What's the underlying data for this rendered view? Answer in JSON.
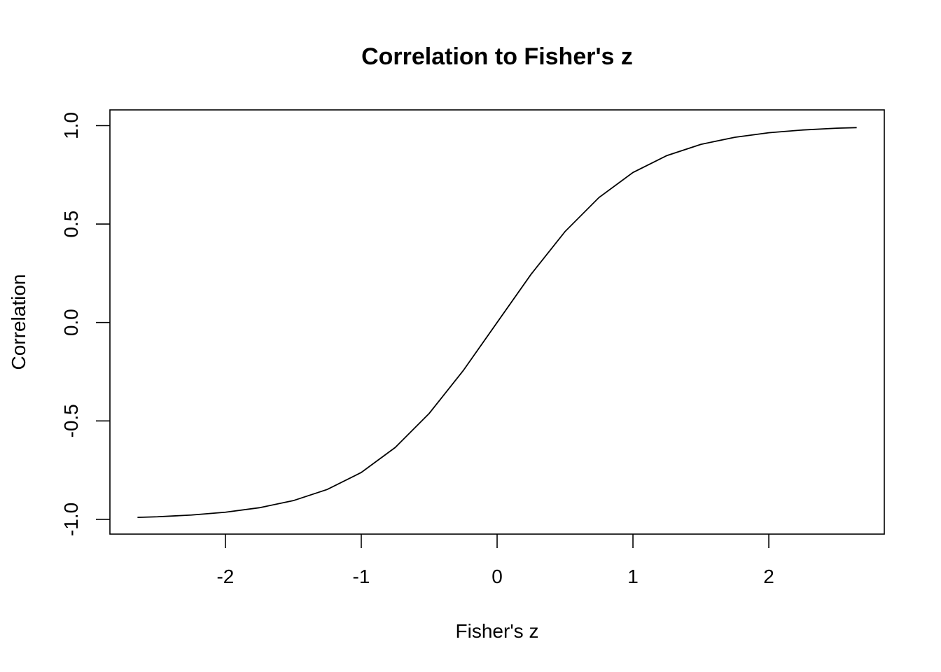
{
  "chart_data": {
    "type": "line",
    "title": "Correlation to Fisher's z",
    "xlabel": "Fisher's z",
    "ylabel": "Correlation",
    "xlim": [
      -2.85,
      2.85
    ],
    "ylim": [
      -1.075,
      1.08
    ],
    "x_ticks": [
      -2,
      -1,
      0,
      1,
      2
    ],
    "x_tick_labels": [
      "-2",
      "-1",
      "0",
      "1",
      "2"
    ],
    "y_ticks": [
      -1.0,
      -0.5,
      0.0,
      0.5,
      1.0
    ],
    "y_tick_labels": [
      "-1.0",
      "-0.5",
      "0.0",
      "0.5",
      "1.0"
    ],
    "grid": false,
    "series": [
      {
        "x": [
          -2.647,
          -2.5,
          -2.25,
          -2.0,
          -1.75,
          -1.5,
          -1.25,
          -1.0,
          -0.75,
          -0.5,
          -0.25,
          0.0,
          0.25,
          0.5,
          0.75,
          1.0,
          1.25,
          1.5,
          1.75,
          2.0,
          2.25,
          2.5,
          2.647
        ],
        "y": [
          -0.99,
          -0.987,
          -0.978,
          -0.964,
          -0.941,
          -0.905,
          -0.848,
          -0.762,
          -0.635,
          -0.462,
          -0.245,
          0.0,
          0.245,
          0.462,
          0.635,
          0.762,
          0.848,
          0.905,
          0.941,
          0.964,
          0.978,
          0.987,
          0.99
        ],
        "color": "#000000"
      }
    ]
  }
}
